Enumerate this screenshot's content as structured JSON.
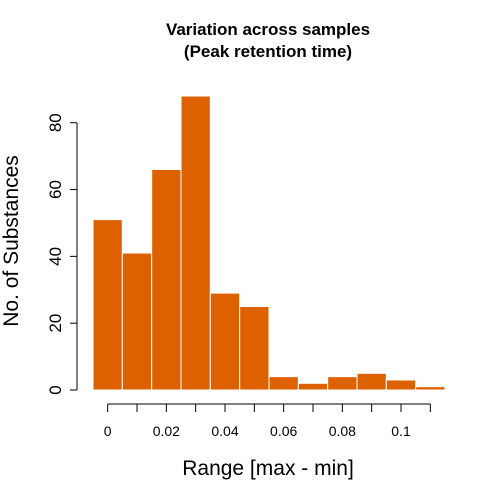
{
  "chart_data": {
    "type": "bar",
    "title": "Variation across samples",
    "subtitle": "(Peak retention time)",
    "xlabel": "Range [max - min]",
    "ylabel": "No. of Substances",
    "xlim": [
      -0.005,
      0.115
    ],
    "ylim": [
      0,
      88
    ],
    "bin_width": 0.01,
    "bins": [
      {
        "start": -0.005,
        "end": 0.005,
        "count": 51
      },
      {
        "start": 0.005,
        "end": 0.015,
        "count": 41
      },
      {
        "start": 0.015,
        "end": 0.025,
        "count": 66
      },
      {
        "start": 0.025,
        "end": 0.035,
        "count": 88
      },
      {
        "start": 0.035,
        "end": 0.045,
        "count": 29
      },
      {
        "start": 0.045,
        "end": 0.055,
        "count": 25
      },
      {
        "start": 0.055,
        "end": 0.065,
        "count": 4
      },
      {
        "start": 0.065,
        "end": 0.075,
        "count": 2
      },
      {
        "start": 0.075,
        "end": 0.085,
        "count": 4
      },
      {
        "start": 0.085,
        "end": 0.095,
        "count": 5
      },
      {
        "start": 0.095,
        "end": 0.105,
        "count": 3
      },
      {
        "start": 0.105,
        "end": 0.115,
        "count": 1
      }
    ],
    "x_ticks": [
      0,
      0.01,
      0.02,
      0.03,
      0.04,
      0.05,
      0.06,
      0.07,
      0.08,
      0.09,
      0.1,
      0.11
    ],
    "x_tick_labels": [
      {
        "value": 0,
        "label": "0"
      },
      {
        "value": 0.02,
        "label": "0.02"
      },
      {
        "value": 0.04,
        "label": "0.04"
      },
      {
        "value": 0.06,
        "label": "0.06"
      },
      {
        "value": 0.08,
        "label": "0.08"
      },
      {
        "value": 0.1,
        "label": "0.1"
      }
    ],
    "y_ticks": [
      {
        "value": 0,
        "label": "0"
      },
      {
        "value": 20,
        "label": "20"
      },
      {
        "value": 40,
        "label": "40"
      },
      {
        "value": 60,
        "label": "60"
      },
      {
        "value": 80,
        "label": "80"
      }
    ],
    "bar_color": "#dd6100",
    "bar_border_color": "#ffffff",
    "grid": false,
    "legend": "none"
  }
}
